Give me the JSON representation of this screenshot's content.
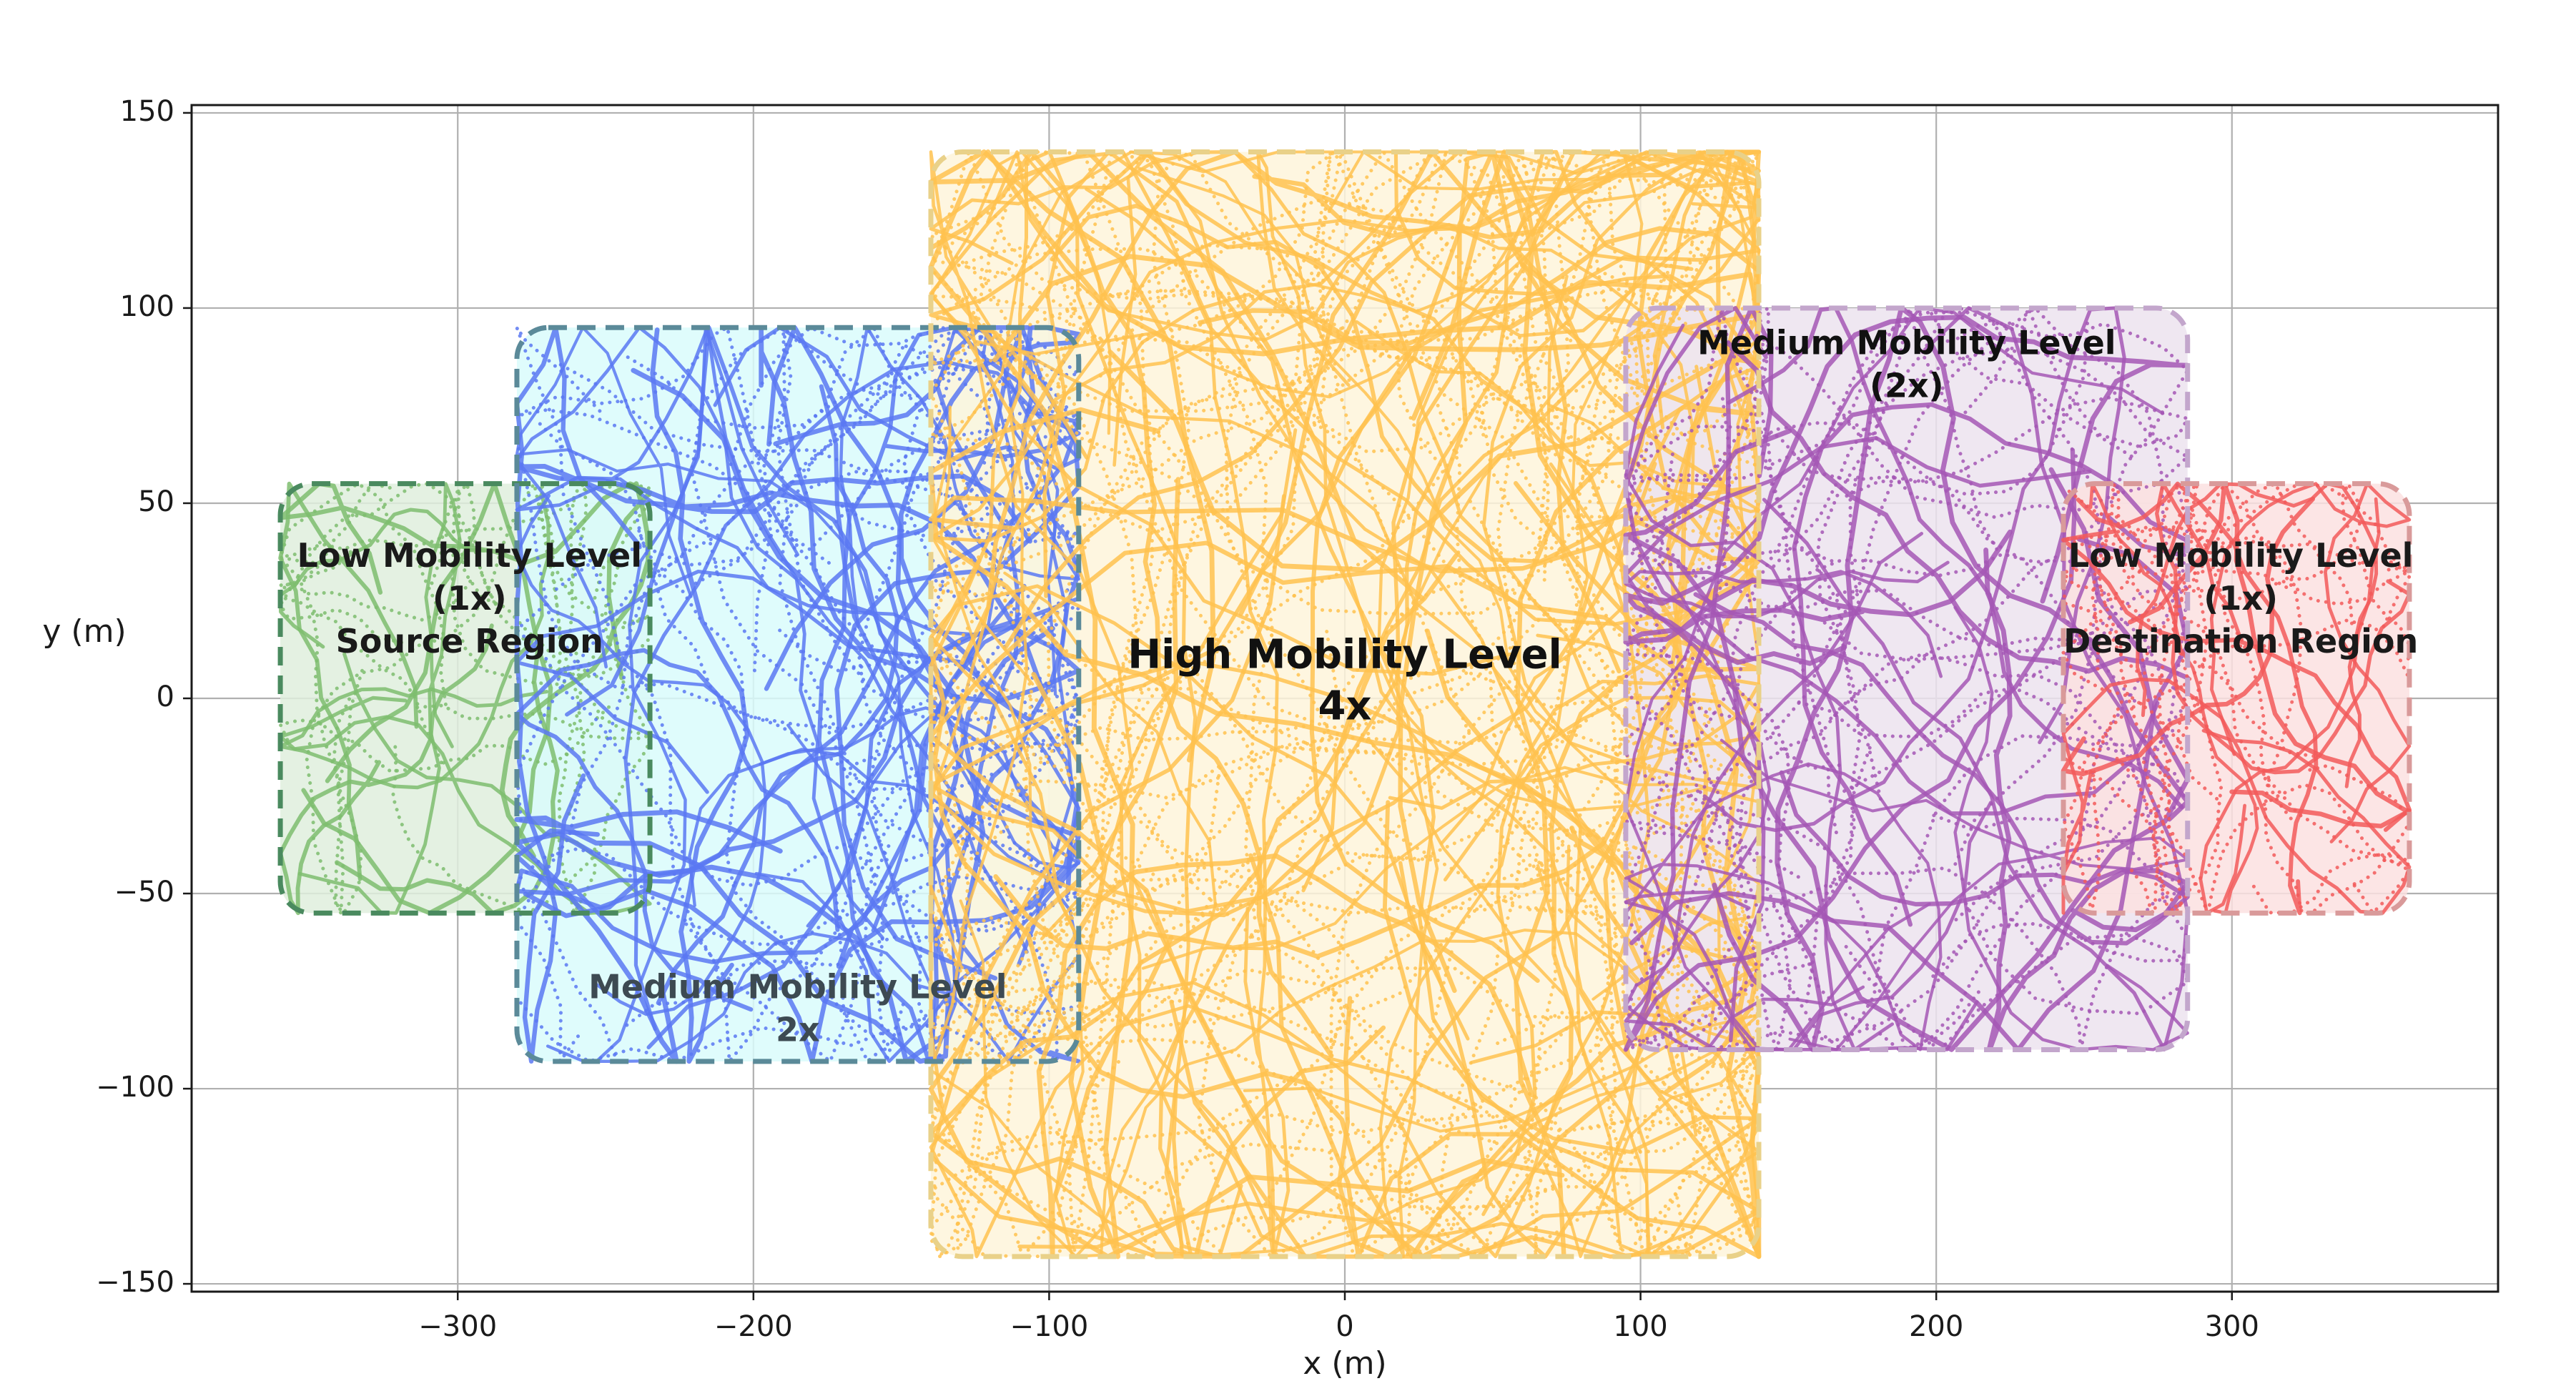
{
  "chart_data": {
    "type": "scatter",
    "title": "",
    "xlabel": "x (m)",
    "ylabel": "y (m)",
    "xlim": [
      -390,
      390
    ],
    "ylim": [
      -152,
      152
    ],
    "grid": true,
    "xticks": [
      -300,
      -200,
      -100,
      0,
      100,
      200,
      300
    ],
    "xtick_labels": [
      "−300",
      "−200",
      "−100",
      "0",
      "100",
      "200",
      "300"
    ],
    "yticks": [
      -150,
      -100,
      -50,
      0,
      50,
      100,
      150
    ],
    "ytick_labels": [
      "−150",
      "−100",
      "−50",
      "0",
      "50",
      "100",
      "150"
    ],
    "regions": [
      {
        "id": "low-source",
        "x_range": [
          -360,
          -235
        ],
        "y_range": [
          -55,
          55
        ],
        "label_lines": [
          "Low Mobility Level",
          "(1x)",
          "Source Region"
        ],
        "label_at": [
          -296,
          25
        ],
        "fill": "#dfeedd",
        "edge": "#4a8a5f",
        "track": "#7ebd6e",
        "label_color": "#1a1a1a",
        "speed_multiplier": 1
      },
      {
        "id": "medium-left",
        "x_range": [
          -280,
          -90
        ],
        "y_range": [
          -93,
          95
        ],
        "label_lines": [
          "Medium Mobility Level",
          "2x"
        ],
        "label_at": [
          -185,
          -80
        ],
        "fill": "#d9fbfc",
        "edge": "#5b8a99",
        "track": "#5b78f2",
        "label_color": "#3d4a52",
        "speed_multiplier": 2
      },
      {
        "id": "high-center",
        "x_range": [
          -140,
          140
        ],
        "y_range": [
          -143,
          140
        ],
        "label_lines": [
          "High Mobility Level",
          "4x"
        ],
        "label_at": [
          0,
          4
        ],
        "fill": "#fef4da",
        "edge": "#e9d189",
        "track": "#ffc24f",
        "label_color": "#111111",
        "speed_multiplier": 4
      },
      {
        "id": "medium-right",
        "x_range": [
          95,
          285
        ],
        "y_range": [
          -90,
          100
        ],
        "label_lines": [
          "Medium Mobility Level",
          "(2x)"
        ],
        "label_at": [
          190,
          85
        ],
        "fill": "#ece3ef",
        "edge": "#c3a6cc",
        "track": "#a557b5",
        "label_color": "#111111",
        "speed_multiplier": 2
      },
      {
        "id": "low-destination",
        "x_range": [
          243,
          360
        ],
        "y_range": [
          -55,
          55
        ],
        "label_lines": [
          "Low Mobility Level",
          "(1x)",
          "Destination Region"
        ],
        "label_at": [
          303,
          25
        ],
        "fill": "#fbe0e0",
        "edge": "#d99a9a",
        "track": "#f25a5a",
        "label_color": "#1a1a1a",
        "speed_multiplier": 1
      }
    ]
  }
}
